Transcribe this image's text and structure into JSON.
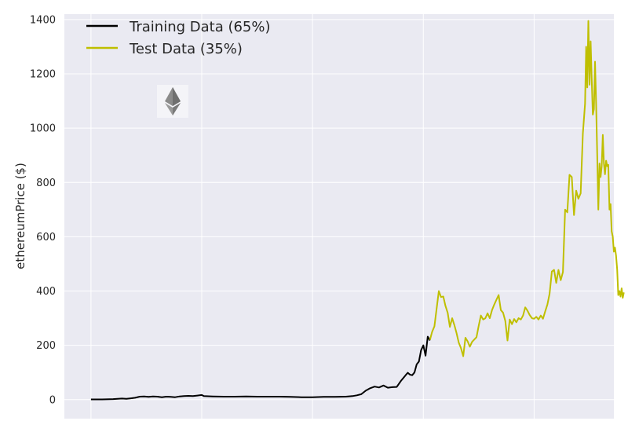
{
  "chart_data": {
    "type": "line",
    "title": "",
    "xlabel": "",
    "ylabel": "ethereumPrice ($)",
    "ylim": [
      -70,
      1420
    ],
    "yticks": [
      0,
      200,
      400,
      600,
      800,
      1000,
      1200,
      1400
    ],
    "xlim": [
      -12,
      236
    ],
    "xticks": [
      0,
      50,
      100,
      150,
      200
    ],
    "grid": true,
    "legend_position": "top-left",
    "logo_icon": "ethereum-diamond-icon",
    "colors": {
      "background": "#eaeaf2",
      "grid": "#ffffff",
      "training": "#000000",
      "test": "#bfbf00"
    },
    "series": [
      {
        "name": "Training Data (65%)",
        "color": "#000000",
        "points": [
          [
            0,
            1
          ],
          [
            5,
            1
          ],
          [
            10,
            2
          ],
          [
            14,
            4
          ],
          [
            16,
            3
          ],
          [
            18,
            5
          ],
          [
            20,
            7
          ],
          [
            22,
            11
          ],
          [
            24,
            12
          ],
          [
            26,
            10
          ],
          [
            28,
            12
          ],
          [
            30,
            11
          ],
          [
            32,
            9
          ],
          [
            34,
            11
          ],
          [
            36,
            10
          ],
          [
            38,
            9
          ],
          [
            40,
            12
          ],
          [
            42,
            13
          ],
          [
            44,
            14
          ],
          [
            46,
            13
          ],
          [
            48,
            15
          ],
          [
            50,
            17
          ],
          [
            51,
            13
          ],
          [
            55,
            12
          ],
          [
            60,
            11
          ],
          [
            65,
            11
          ],
          [
            70,
            12
          ],
          [
            75,
            11
          ],
          [
            80,
            11
          ],
          [
            85,
            11
          ],
          [
            90,
            10
          ],
          [
            95,
            9
          ],
          [
            100,
            9
          ],
          [
            105,
            10
          ],
          [
            110,
            10
          ],
          [
            115,
            11
          ],
          [
            118,
            13
          ],
          [
            120,
            16
          ],
          [
            122,
            20
          ],
          [
            124,
            33
          ],
          [
            126,
            42
          ],
          [
            128,
            48
          ],
          [
            130,
            45
          ],
          [
            132,
            52
          ],
          [
            134,
            44
          ],
          [
            136,
            46
          ],
          [
            138,
            47
          ],
          [
            140,
            70
          ],
          [
            142,
            90
          ],
          [
            143,
            99
          ],
          [
            144,
            92
          ],
          [
            145,
            90
          ],
          [
            146,
            100
          ],
          [
            147,
            130
          ],
          [
            148,
            140
          ],
          [
            149,
            182
          ],
          [
            150,
            200
          ],
          [
            151,
            162
          ],
          [
            152,
            232
          ],
          [
            153,
            218
          ]
        ]
      },
      {
        "name": "Test Data (35%)",
        "color": "#bfbf00",
        "points": [
          [
            153,
            220
          ],
          [
            154,
            250
          ],
          [
            155,
            270
          ],
          [
            156,
            335
          ],
          [
            157,
            400
          ],
          [
            158,
            378
          ],
          [
            159,
            380
          ],
          [
            160,
            345
          ],
          [
            161,
            320
          ],
          [
            162,
            268
          ],
          [
            163,
            300
          ],
          [
            164,
            275
          ],
          [
            165,
            245
          ],
          [
            166,
            210
          ],
          [
            167,
            190
          ],
          [
            168,
            160
          ],
          [
            169,
            228
          ],
          [
            170,
            215
          ],
          [
            171,
            195
          ],
          [
            172,
            213
          ],
          [
            174,
            230
          ],
          [
            175,
            272
          ],
          [
            176,
            310
          ],
          [
            177,
            295
          ],
          [
            178,
            300
          ],
          [
            179,
            318
          ],
          [
            180,
            300
          ],
          [
            181,
            330
          ],
          [
            182,
            350
          ],
          [
            183,
            368
          ],
          [
            184,
            385
          ],
          [
            185,
            330
          ],
          [
            186,
            320
          ],
          [
            187,
            290
          ],
          [
            188,
            218
          ],
          [
            189,
            295
          ],
          [
            190,
            278
          ],
          [
            191,
            297
          ],
          [
            192,
            285
          ],
          [
            193,
            300
          ],
          [
            194,
            295
          ],
          [
            195,
            310
          ],
          [
            196,
            340
          ],
          [
            197,
            328
          ],
          [
            198,
            312
          ],
          [
            199,
            300
          ],
          [
            200,
            298
          ],
          [
            201,
            305
          ],
          [
            202,
            295
          ],
          [
            203,
            310
          ],
          [
            204,
            298
          ],
          [
            205,
            325
          ],
          [
            206,
            350
          ],
          [
            207,
            390
          ],
          [
            208,
            472
          ],
          [
            209,
            478
          ],
          [
            210,
            430
          ],
          [
            211,
            478
          ],
          [
            212,
            440
          ],
          [
            213,
            470
          ],
          [
            214,
            700
          ],
          [
            215,
            690
          ],
          [
            216,
            828
          ],
          [
            217,
            820
          ],
          [
            218,
            680
          ],
          [
            219,
            770
          ],
          [
            220,
            740
          ],
          [
            221,
            760
          ],
          [
            222,
            980
          ],
          [
            223,
            1090
          ],
          [
            223.5,
            1300
          ],
          [
            224,
            1150
          ],
          [
            224.5,
            1395
          ],
          [
            225,
            1160
          ],
          [
            225.5,
            1320
          ],
          [
            226,
            1180
          ],
          [
            226.5,
            1050
          ],
          [
            227,
            1070
          ],
          [
            227.5,
            1245
          ],
          [
            228,
            1090
          ],
          [
            228.5,
            900
          ],
          [
            229,
            700
          ],
          [
            229.5,
            870
          ],
          [
            230,
            820
          ],
          [
            230.5,
            860
          ],
          [
            231,
            975
          ],
          [
            231.5,
            870
          ],
          [
            232,
            830
          ],
          [
            232.5,
            880
          ],
          [
            233,
            860
          ],
          [
            233.5,
            865
          ],
          [
            234,
            700
          ],
          [
            234.5,
            720
          ],
          [
            235,
            620
          ],
          [
            235.5,
            600
          ],
          [
            236,
            545
          ],
          [
            236.5,
            560
          ],
          [
            237,
            530
          ],
          [
            237.5,
            480
          ],
          [
            238,
            385
          ],
          [
            238.5,
            400
          ],
          [
            239,
            380
          ],
          [
            239.5,
            410
          ],
          [
            240,
            375
          ],
          [
            240.5,
            395
          ]
        ]
      }
    ]
  }
}
